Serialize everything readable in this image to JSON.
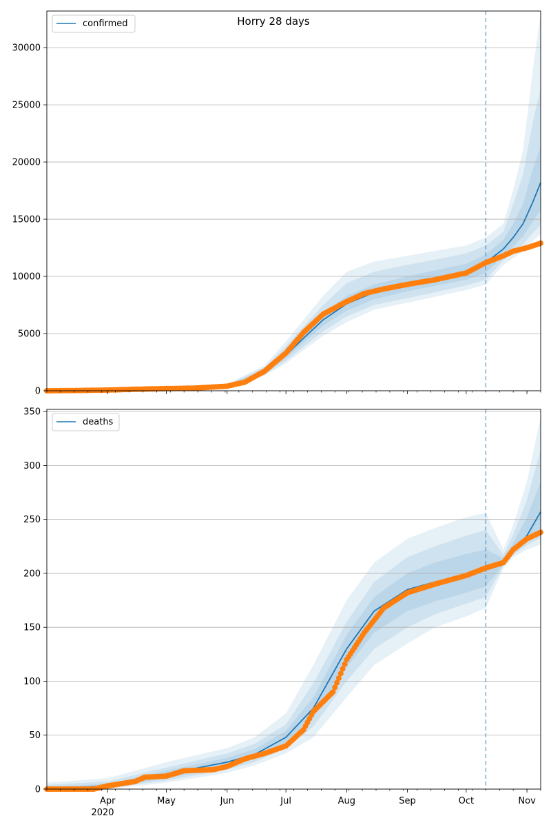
{
  "chart_data": [
    {
      "type": "line",
      "title": "Horry 28 days",
      "legend": {
        "label": "confirmed",
        "placement": "top-left"
      },
      "y_ticks": [
        0,
        5000,
        10000,
        15000,
        20000,
        25000,
        30000
      ],
      "ylim": [
        0,
        33200
      ],
      "xlim": [
        "2020-03-01",
        "2020-11-08"
      ],
      "grid": "horizontal",
      "forecast_start": "2020-10-11",
      "colors": {
        "model": "#1f77b4",
        "observed": "#ff7f0e",
        "band": "#1f77b4"
      },
      "model_line": {
        "x": [
          "2020-03-01",
          "2020-04-01",
          "2020-05-01",
          "2020-05-20",
          "2020-06-01",
          "2020-06-10",
          "2020-06-20",
          "2020-07-01",
          "2020-07-10",
          "2020-07-20",
          "2020-08-01",
          "2020-08-15",
          "2020-09-01",
          "2020-09-15",
          "2020-10-01",
          "2020-10-11",
          "2020-10-20",
          "2020-10-25",
          "2020-10-30",
          "2020-11-04",
          "2020-11-08"
        ],
        "y": [
          50,
          110,
          220,
          300,
          420,
          800,
          1700,
          3100,
          4600,
          6200,
          7600,
          8600,
          9300,
          9800,
          10400,
          11200,
          12400,
          13400,
          14600,
          16500,
          18200
        ]
      },
      "bands": [
        {
          "x": [
            "2020-03-01",
            "2020-05-01",
            "2020-06-01",
            "2020-06-20",
            "2020-07-01",
            "2020-07-20",
            "2020-08-01",
            "2020-08-15",
            "2020-09-01",
            "2020-10-01",
            "2020-10-11",
            "2020-10-20",
            "2020-10-25",
            "2020-10-30",
            "2020-11-04",
            "2020-11-08"
          ],
          "lower": [
            0,
            150,
            300,
            1300,
            2400,
            4800,
            6000,
            7100,
            7700,
            8800,
            9300,
            11000,
            11600,
            12200,
            13100,
            13700
          ],
          "upper": [
            150,
            320,
            600,
            2200,
            4300,
            8300,
            10400,
            11300,
            11800,
            12700,
            13400,
            14600,
            17600,
            21000,
            28000,
            33000
          ]
        },
        {
          "x": [
            "2020-03-01",
            "2020-05-01",
            "2020-06-01",
            "2020-06-20",
            "2020-07-01",
            "2020-07-20",
            "2020-08-01",
            "2020-08-15",
            "2020-09-01",
            "2020-10-01",
            "2020-10-11",
            "2020-10-20",
            "2020-10-25",
            "2020-10-30",
            "2020-11-04",
            "2020-11-08"
          ],
          "lower": [
            20,
            180,
            340,
            1400,
            2600,
            5200,
            6500,
            7500,
            8100,
            9200,
            9700,
            11400,
            12100,
            12800,
            13800,
            14500
          ],
          "upper": [
            110,
            280,
            520,
            2050,
            3900,
            7500,
            9400,
            10400,
            11000,
            12000,
            12700,
            13900,
            16300,
            18900,
            23500,
            26500
          ]
        },
        {
          "x": [
            "2020-03-01",
            "2020-05-01",
            "2020-06-01",
            "2020-06-20",
            "2020-07-01",
            "2020-07-20",
            "2020-08-01",
            "2020-08-15",
            "2020-09-01",
            "2020-10-01",
            "2020-10-11",
            "2020-10-20",
            "2020-10-25",
            "2020-10-30",
            "2020-11-04",
            "2020-11-08"
          ],
          "lower": [
            35,
            200,
            370,
            1550,
            2850,
            5700,
            7000,
            8000,
            8700,
            9700,
            10300,
            11800,
            12600,
            13500,
            14800,
            15800
          ],
          "upper": [
            80,
            250,
            470,
            1850,
            3450,
            6800,
            8300,
            9300,
            10000,
            11100,
            11900,
            13200,
            14600,
            16300,
            19400,
            21400
          ]
        }
      ],
      "observed": [
        {
          "x": "2020-03-01",
          "y": 0
        },
        {
          "x": "2020-03-15",
          "y": 20
        },
        {
          "x": "2020-04-01",
          "y": 60
        },
        {
          "x": "2020-04-15",
          "y": 130
        },
        {
          "x": "2020-05-01",
          "y": 190
        },
        {
          "x": "2020-05-15",
          "y": 230
        },
        {
          "x": "2020-06-01",
          "y": 400
        },
        {
          "x": "2020-06-10",
          "y": 750
        },
        {
          "x": "2020-06-20",
          "y": 1700
        },
        {
          "x": "2020-07-01",
          "y": 3300
        },
        {
          "x": "2020-07-10",
          "y": 5100
        },
        {
          "x": "2020-07-20",
          "y": 6700
        },
        {
          "x": "2020-08-01",
          "y": 7800
        },
        {
          "x": "2020-08-10",
          "y": 8500
        },
        {
          "x": "2020-08-20",
          "y": 8900
        },
        {
          "x": "2020-09-01",
          "y": 9300
        },
        {
          "x": "2020-09-15",
          "y": 9700
        },
        {
          "x": "2020-10-01",
          "y": 10300
        },
        {
          "x": "2020-10-11",
          "y": 11200
        },
        {
          "x": "2020-10-20",
          "y": 11800
        },
        {
          "x": "2020-10-25",
          "y": 12200
        },
        {
          "x": "2020-11-01",
          "y": 12500
        },
        {
          "x": "2020-11-08",
          "y": 12900
        }
      ]
    },
    {
      "type": "line",
      "title": "",
      "legend": {
        "label": "deaths",
        "placement": "top-left"
      },
      "y_ticks": [
        0,
        50,
        100,
        150,
        200,
        250,
        300,
        350
      ],
      "ylim": [
        0,
        352
      ],
      "xlim": [
        "2020-03-01",
        "2020-11-08"
      ],
      "grid": "horizontal",
      "forecast_start": "2020-10-11",
      "x_ticks": [
        "Apr",
        "May",
        "Jun",
        "Jul",
        "Aug",
        "Sep",
        "Oct",
        "Nov"
      ],
      "x_tick_dates": [
        "2020-04-01",
        "2020-05-01",
        "2020-06-01",
        "2020-07-01",
        "2020-08-01",
        "2020-09-01",
        "2020-10-01",
        "2020-11-01"
      ],
      "x_year_label": "2020",
      "colors": {
        "model": "#1f77b4",
        "observed": "#ff7f0e",
        "band": "#1f77b4"
      },
      "model_line": {
        "x": [
          "2020-03-01",
          "2020-04-01",
          "2020-05-01",
          "2020-06-01",
          "2020-06-15",
          "2020-07-01",
          "2020-07-15",
          "2020-08-01",
          "2020-08-15",
          "2020-09-01",
          "2020-09-15",
          "2020-10-01",
          "2020-10-11",
          "2020-10-20",
          "2020-10-25",
          "2020-11-01",
          "2020-11-08"
        ],
        "y": [
          0,
          3,
          14,
          25,
          32,
          48,
          75,
          130,
          165,
          185,
          192,
          198,
          205,
          210,
          220,
          235,
          257
        ]
      },
      "bands": [
        {
          "x": [
            "2020-03-01",
            "2020-04-01",
            "2020-05-01",
            "2020-06-01",
            "2020-06-15",
            "2020-07-01",
            "2020-07-15",
            "2020-08-01",
            "2020-08-15",
            "2020-09-01",
            "2020-09-15",
            "2020-10-01",
            "2020-10-11",
            "2020-10-20",
            "2020-10-25",
            "2020-11-01",
            "2020-11-08"
          ],
          "lower": [
            0,
            0,
            6,
            15,
            22,
            33,
            48,
            85,
            115,
            135,
            150,
            160,
            168,
            205,
            215,
            222,
            227
          ],
          "upper": [
            6,
            10,
            25,
            38,
            48,
            70,
            115,
            175,
            210,
            232,
            242,
            252,
            256,
            222,
            245,
            285,
            345
          ]
        },
        {
          "x": [
            "2020-03-01",
            "2020-04-01",
            "2020-05-01",
            "2020-06-01",
            "2020-06-15",
            "2020-07-01",
            "2020-07-15",
            "2020-08-01",
            "2020-08-15",
            "2020-09-01",
            "2020-09-15",
            "2020-10-01",
            "2020-10-11",
            "2020-10-20",
            "2020-10-25",
            "2020-11-01",
            "2020-11-08"
          ],
          "lower": [
            0,
            1,
            8,
            18,
            25,
            38,
            58,
            100,
            130,
            150,
            162,
            172,
            178,
            207,
            217,
            226,
            233
          ],
          "upper": [
            4,
            7,
            20,
            33,
            42,
            60,
            98,
            155,
            192,
            215,
            225,
            235,
            240,
            217,
            236,
            268,
            315
          ]
        },
        {
          "x": [
            "2020-03-01",
            "2020-04-01",
            "2020-05-01",
            "2020-06-01",
            "2020-06-15",
            "2020-07-01",
            "2020-07-15",
            "2020-08-01",
            "2020-08-15",
            "2020-09-01",
            "2020-09-15",
            "2020-10-01",
            "2020-10-11",
            "2020-10-20",
            "2020-10-25",
            "2020-11-01",
            "2020-11-08"
          ],
          "lower": [
            0,
            2,
            10,
            21,
            28,
            42,
            66,
            113,
            145,
            165,
            174,
            182,
            188,
            208,
            219,
            230,
            240
          ],
          "upper": [
            2,
            5,
            17,
            29,
            37,
            54,
            85,
            143,
            178,
            200,
            210,
            218,
            222,
            214,
            228,
            252,
            285
          ]
        }
      ],
      "observed": [
        {
          "x": "2020-03-01",
          "y": 0
        },
        {
          "x": "2020-03-25",
          "y": 0
        },
        {
          "x": "2020-04-01",
          "y": 3
        },
        {
          "x": "2020-04-15",
          "y": 7
        },
        {
          "x": "2020-04-20",
          "y": 11
        },
        {
          "x": "2020-05-01",
          "y": 12
        },
        {
          "x": "2020-05-10",
          "y": 17
        },
        {
          "x": "2020-05-25",
          "y": 18
        },
        {
          "x": "2020-06-01",
          "y": 21
        },
        {
          "x": "2020-06-10",
          "y": 28
        },
        {
          "x": "2020-06-20",
          "y": 33
        },
        {
          "x": "2020-07-01",
          "y": 40
        },
        {
          "x": "2020-07-10",
          "y": 55
        },
        {
          "x": "2020-07-15",
          "y": 72
        },
        {
          "x": "2020-07-25",
          "y": 90
        },
        {
          "x": "2020-08-01",
          "y": 120
        },
        {
          "x": "2020-08-10",
          "y": 145
        },
        {
          "x": "2020-08-20",
          "y": 168
        },
        {
          "x": "2020-09-01",
          "y": 182
        },
        {
          "x": "2020-09-15",
          "y": 190
        },
        {
          "x": "2020-10-01",
          "y": 198
        },
        {
          "x": "2020-10-11",
          "y": 205
        },
        {
          "x": "2020-10-20",
          "y": 210
        },
        {
          "x": "2020-10-25",
          "y": 222
        },
        {
          "x": "2020-11-01",
          "y": 232
        },
        {
          "x": "2020-11-08",
          "y": 238
        }
      ]
    }
  ]
}
